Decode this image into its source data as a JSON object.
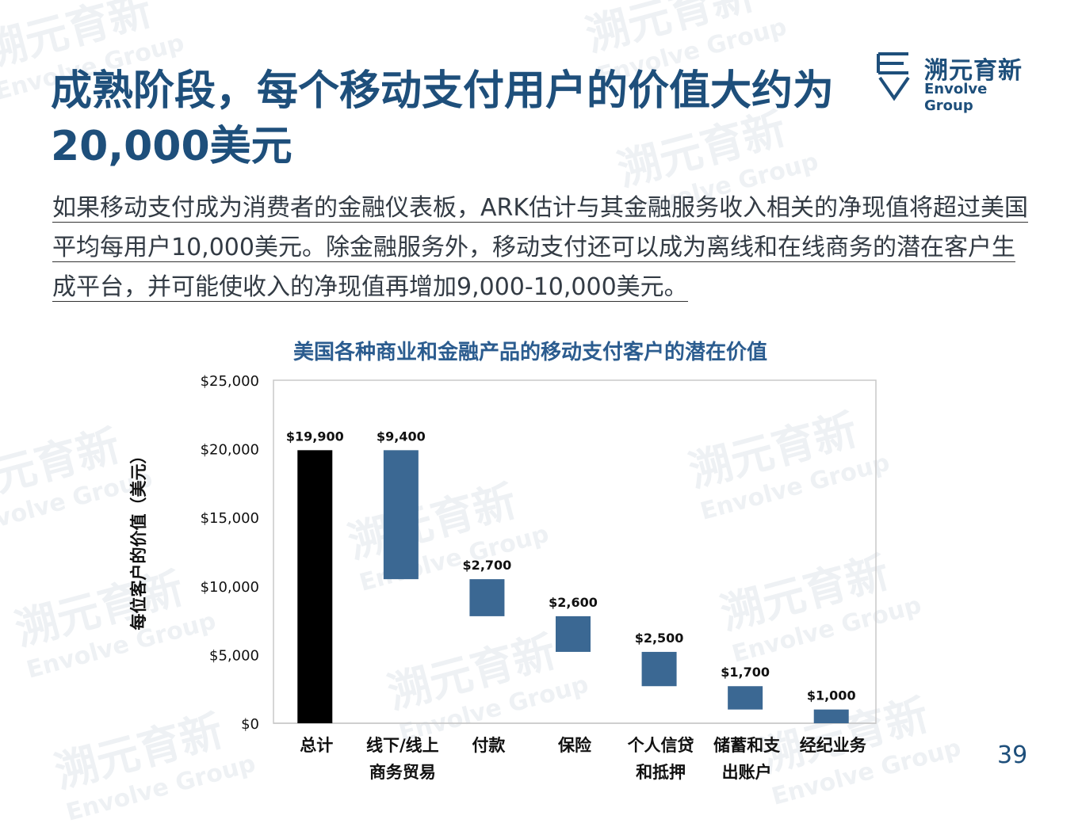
{
  "slide": {
    "title": "成熟阶段，每个移动支付用户的价值大约为20,000美元",
    "body": "如果移动支付成为消费者的金融仪表板，ARK估计与其金融服务收入相关的净现值将超过美国平均每用户10,000美元。除金融服务外，移动支付还可以成为离线和在线商务的潜在客户生成平台，并可能使收入的净现值再增加9,000-10,000美元。",
    "page_number": "39"
  },
  "logo": {
    "name_cn": "溯元育新",
    "name_en": "Envolve Group",
    "color": "#1e4f7b"
  },
  "watermark": {
    "cn": "溯元育新",
    "en": "Envolve Group"
  },
  "chart_data": {
    "type": "bar",
    "subtype": "waterfall",
    "title": "美国各种商业和金融产品的移动支付客户的潜在价值",
    "ylabel": "每位客户的价值（美元）",
    "ylim": [
      0,
      25000
    ],
    "yticks": [
      0,
      5000,
      10000,
      15000,
      20000,
      25000
    ],
    "ytick_labels": [
      "$0",
      "$5,000",
      "$10,000",
      "$15,000",
      "$20,000",
      "$25,000"
    ],
    "categories": [
      [
        "总计"
      ],
      [
        "线下/线上",
        "商务贸易"
      ],
      [
        "付款"
      ],
      [
        "保险"
      ],
      [
        "个人信贷",
        "和抵押"
      ],
      [
        "储蓄和支",
        "出账户"
      ],
      [
        "经纪业务"
      ]
    ],
    "bars": [
      {
        "start": 0,
        "end": 19900,
        "label": "$19,900",
        "color": "#000000"
      },
      {
        "start": 10500,
        "end": 19900,
        "label": "$9,400",
        "color": "#3b6893"
      },
      {
        "start": 7800,
        "end": 10500,
        "label": "$2,700",
        "color": "#3b6893"
      },
      {
        "start": 5200,
        "end": 7800,
        "label": "$2,600",
        "color": "#3b6893"
      },
      {
        "start": 2700,
        "end": 5200,
        "label": "$2,500",
        "color": "#3b6893"
      },
      {
        "start": 1000,
        "end": 2700,
        "label": "$1,700",
        "color": "#3b6893"
      },
      {
        "start": 0,
        "end": 1000,
        "label": "$1,000",
        "color": "#3b6893"
      }
    ],
    "grid": false,
    "legend": "none"
  }
}
